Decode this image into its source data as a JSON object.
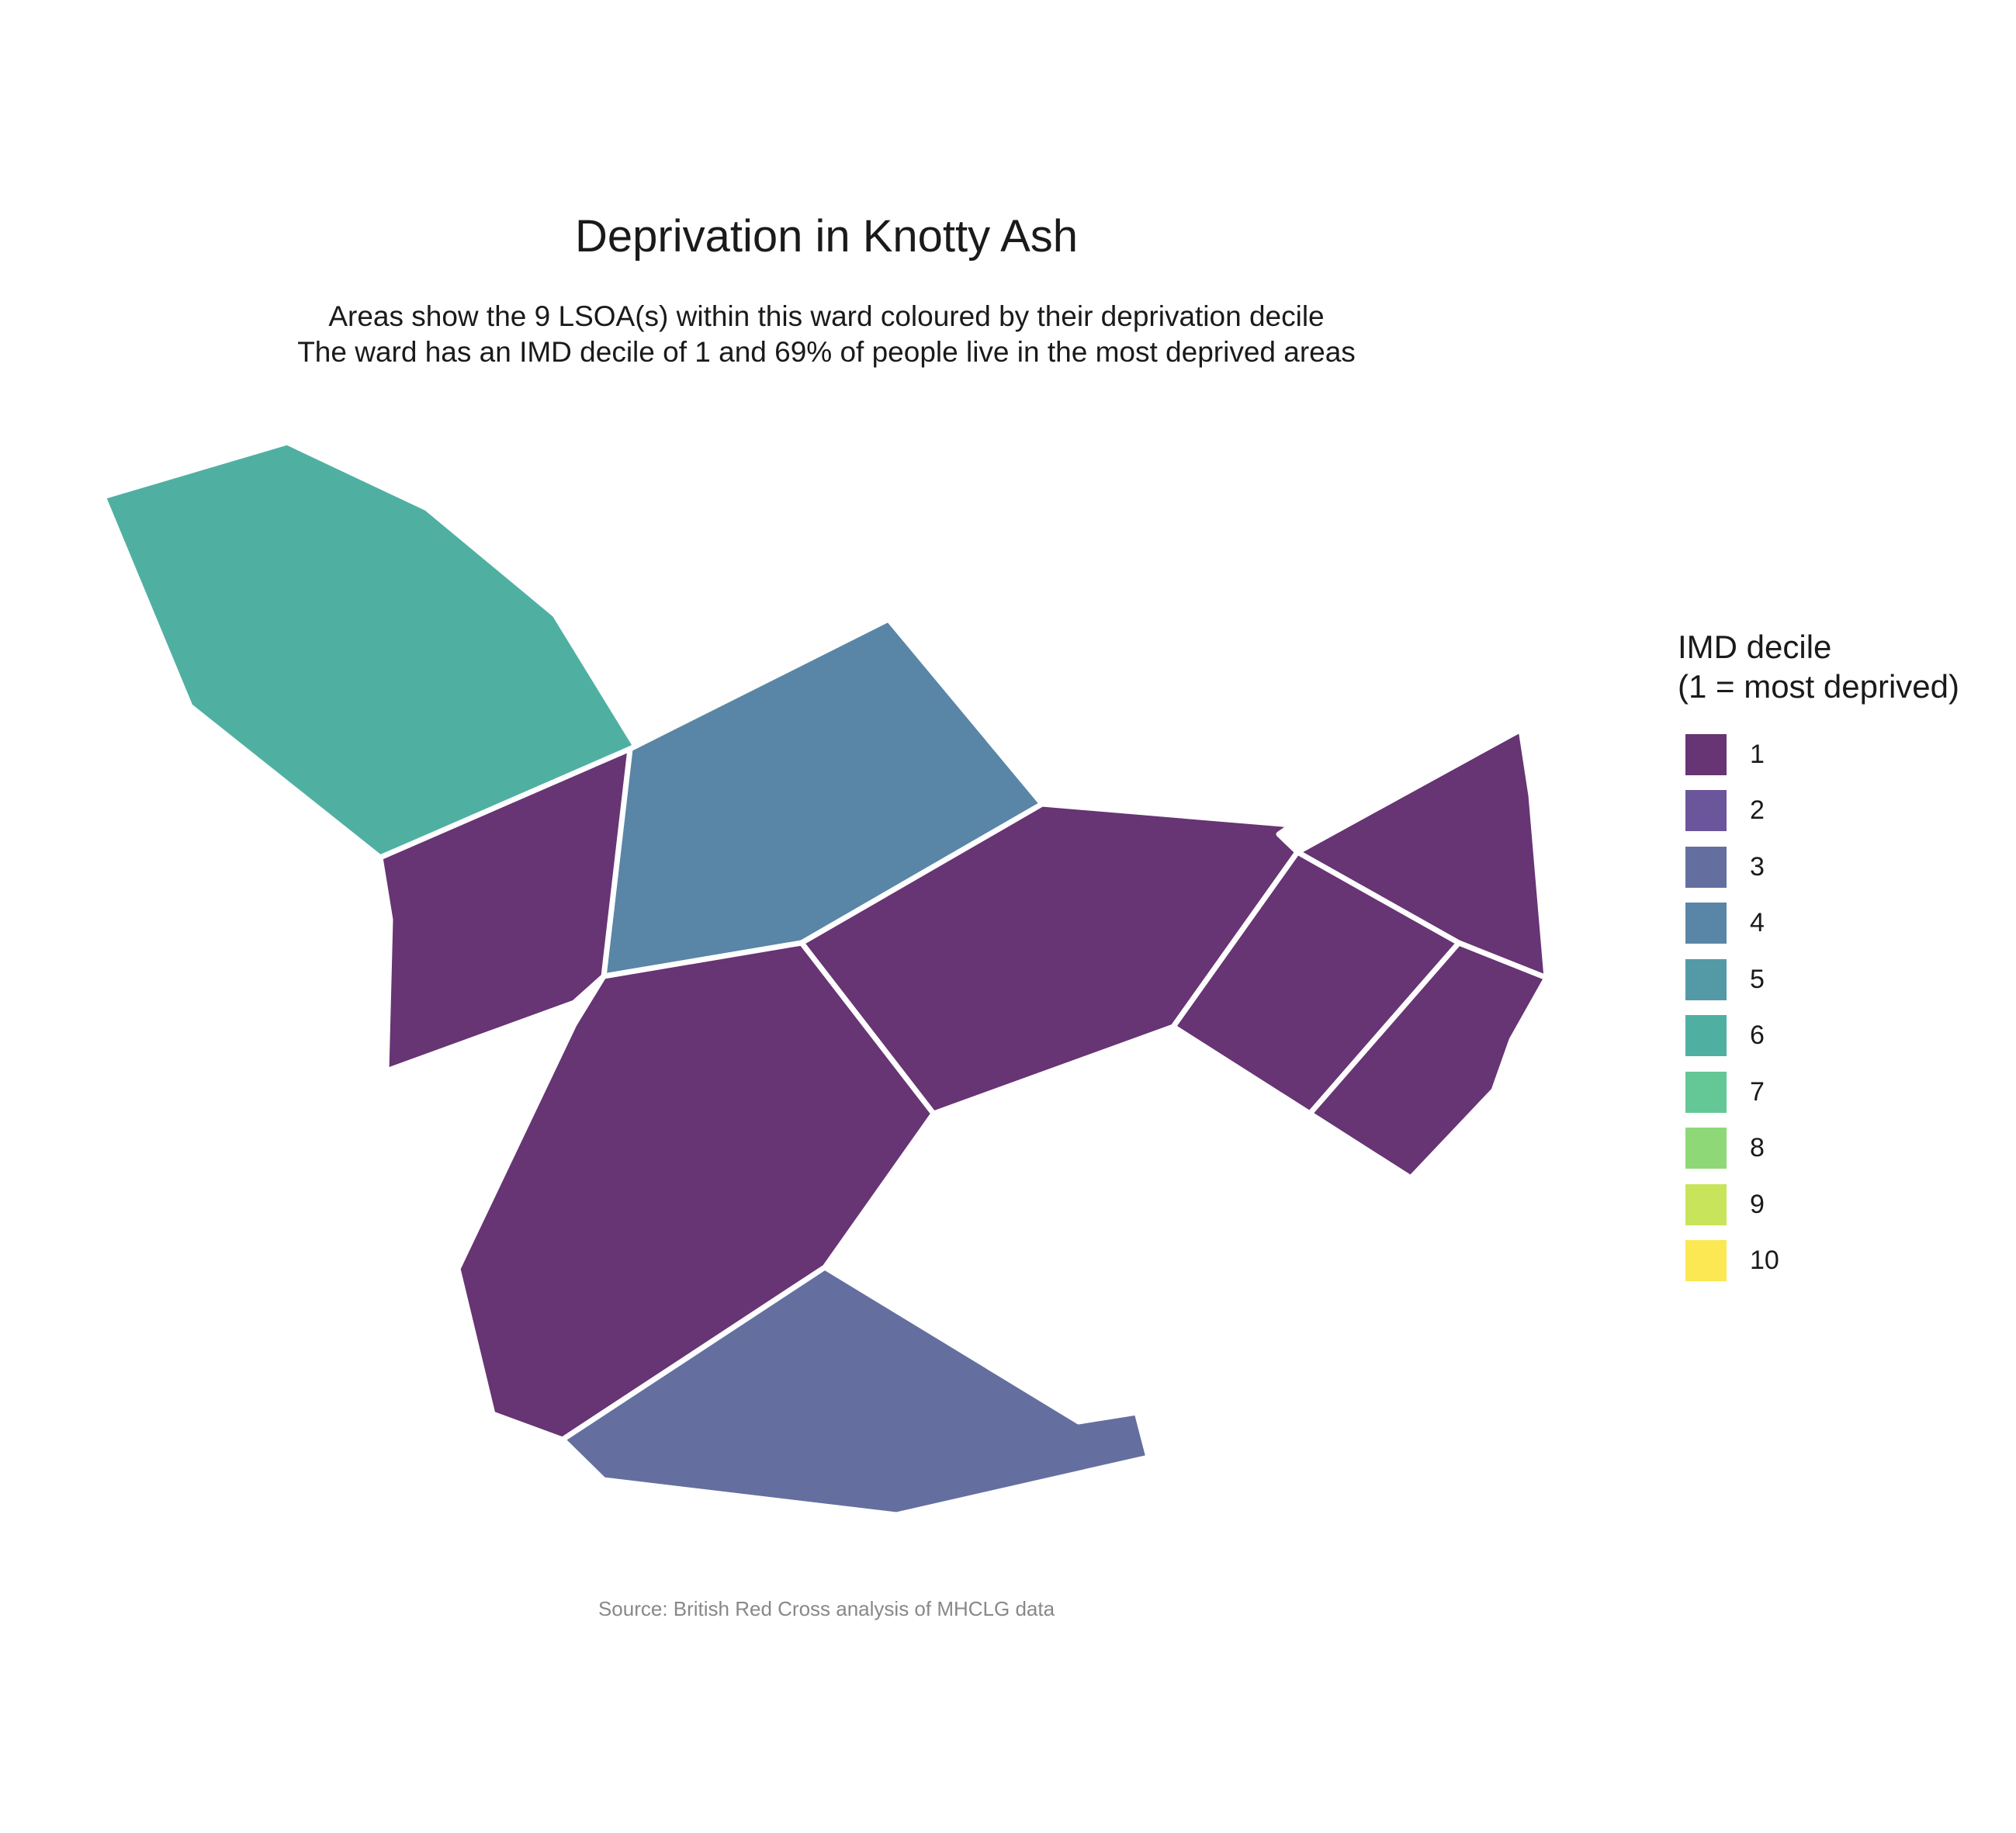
{
  "title": "Deprivation in Knotty Ash",
  "subtitle_lines": [
    "Areas show the 9 LSOA(s) within this ward coloured by their deprivation decile",
    "The ward has an IMD decile of 1 and 69% of people live in the most deprived areas"
  ],
  "caption": "Source: British Red Cross analysis of MHCLG data",
  "legend": {
    "title_lines": [
      "IMD decile",
      "(1 = most deprived)"
    ],
    "items": [
      {
        "label": "1",
        "color": "#673474"
      },
      {
        "label": "2",
        "color": "#6c569b"
      },
      {
        "label": "3",
        "color": "#646fa0"
      },
      {
        "label": "4",
        "color": "#5986a6"
      },
      {
        "label": "5",
        "color": "#539aa6"
      },
      {
        "label": "6",
        "color": "#4fb0a2"
      },
      {
        "label": "7",
        "color": "#63c796"
      },
      {
        "label": "8",
        "color": "#8ed877"
      },
      {
        "label": "9",
        "color": "#c7e45b"
      },
      {
        "label": "10",
        "color": "#fbe853"
      }
    ]
  },
  "map": {
    "boundary_color": "#ffffff",
    "areas": [
      {
        "decile": 6
      },
      {
        "decile": 4
      },
      {
        "decile": 1
      },
      {
        "decile": 1
      },
      {
        "decile": 1
      },
      {
        "decile": 1
      },
      {
        "decile": 1
      },
      {
        "decile": 1
      },
      {
        "decile": 3
      }
    ]
  }
}
